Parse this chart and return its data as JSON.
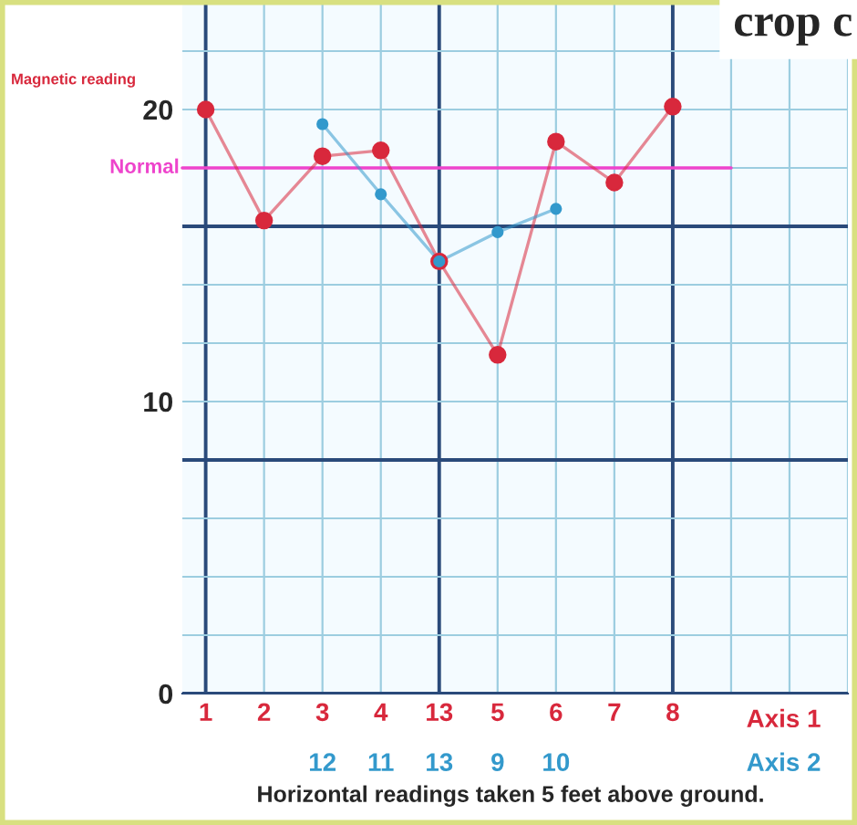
{
  "chart_data": {
    "type": "line",
    "title": "crop c",
    "xlabel": "Horizontal readings taken 5 feet above ground.",
    "ylabel": "Magnetic reading",
    "categories": [
      "1",
      "2",
      "3",
      "4",
      "13",
      "5",
      "6",
      "7",
      "8"
    ],
    "series": [
      {
        "name": "Axis 1",
        "color": "#d8283c",
        "values": [
          20,
          16.2,
          18.4,
          18.6,
          14.8,
          11.6,
          18.9,
          17.5,
          20.1
        ]
      },
      {
        "name": "Axis 2",
        "color": "#3399cc",
        "x": [
          "3",
          "4",
          "13",
          "5",
          "6"
        ],
        "values": [
          19.5,
          17.1,
          14.8,
          15.8,
          16.6
        ]
      }
    ],
    "ylim": [
      0,
      23.75
    ],
    "yticks": [
      0,
      {
        "value": 2,
        "label": null
      },
      {
        "value": 4,
        "label": null
      },
      {
        "value": 6,
        "label": null
      },
      {
        "value": 8,
        "label": null
      },
      10,
      {
        "value": 12,
        "label": null
      },
      {
        "value": 14,
        "label": null
      },
      {
        "value": 16,
        "label": null
      },
      {
        "value": 18,
        "label": null
      },
      20,
      {
        "value": 22,
        "label": null
      }
    ],
    "ref_lines": [
      {
        "axis": "y",
        "value": 18,
        "label": "Normal",
        "color": "#ee44cc"
      }
    ],
    "annotations": [
      "12",
      "11",
      "13",
      "9",
      "10"
    ],
    "grid": true,
    "marker": "circle",
    "line_style": "solid",
    "legend": false
  }
}
